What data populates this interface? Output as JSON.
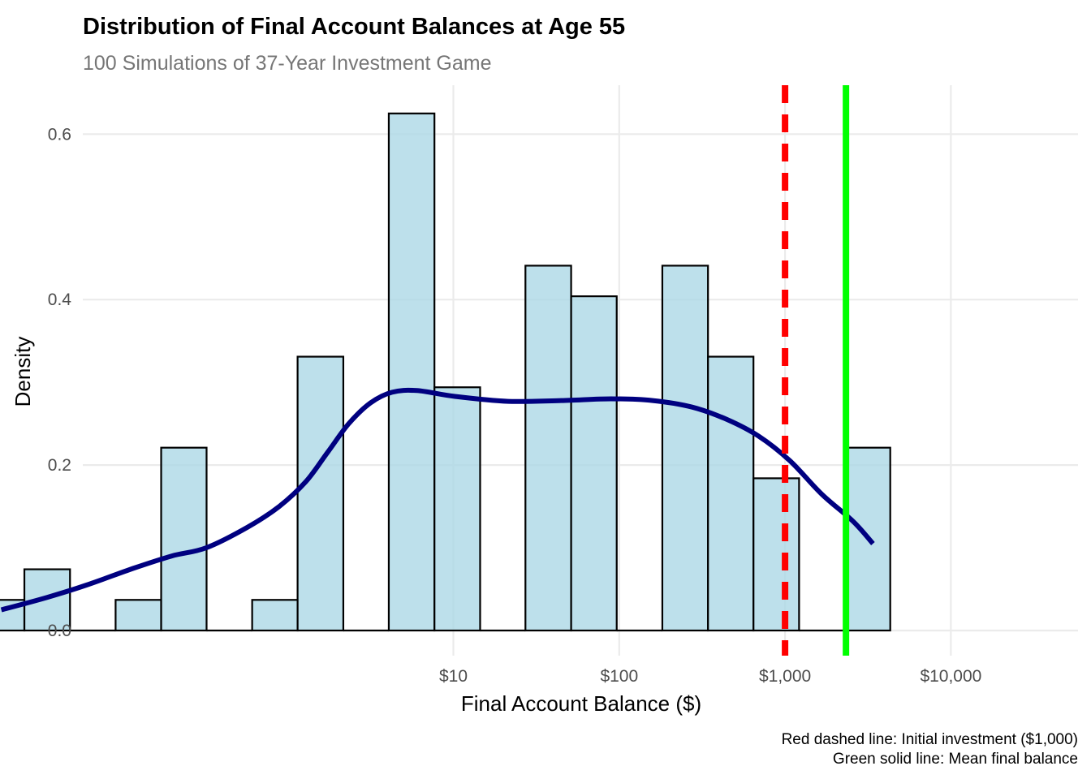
{
  "chart_data": {
    "type": "bar",
    "title": "Distribution of Final Account Balances at Age 55",
    "subtitle": "100 Simulations of 37-Year Investment Game",
    "xlabel": "Final Account Balance ($)",
    "ylabel": "Density",
    "x_scale": "log10",
    "x_tick_labels": [
      {
        "value": 10,
        "label": "$10"
      },
      {
        "value": 100,
        "label": "$100"
      },
      {
        "value": 1000,
        "label": "$1,000"
      },
      {
        "value": 10000,
        "label": "$10,000"
      }
    ],
    "y_tick_labels": [
      {
        "value": 0.0,
        "label": "0.0"
      },
      {
        "value": 0.2,
        "label": "0.2"
      },
      {
        "value": 0.4,
        "label": "0.4"
      },
      {
        "value": 0.6,
        "label": "0.6"
      }
    ],
    "ylim": [
      0,
      0.65
    ],
    "xlim_log10": [
      -2.03,
      4.05
    ],
    "grid": true,
    "histogram": {
      "bar_fill": "#add8e6",
      "bar_stroke": "#000000",
      "bins": [
        {
          "x_min": 0.0138,
          "x_max": 0.0259,
          "density": 0.037
        },
        {
          "x_min": 0.0259,
          "x_max": 0.0488,
          "density": 0.074
        },
        {
          "x_min": 0.0488,
          "x_max": 0.0919,
          "density": 0.0
        },
        {
          "x_min": 0.0919,
          "x_max": 0.173,
          "density": 0.037
        },
        {
          "x_min": 0.173,
          "x_max": 0.325,
          "density": 0.221
        },
        {
          "x_min": 0.325,
          "x_max": 0.612,
          "density": 0.0
        },
        {
          "x_min": 0.612,
          "x_max": 1.15,
          "density": 0.037
        },
        {
          "x_min": 1.15,
          "x_max": 2.17,
          "density": 0.331
        },
        {
          "x_min": 2.17,
          "x_max": 4.08,
          "density": 0.0
        },
        {
          "x_min": 4.08,
          "x_max": 7.69,
          "density": 0.625
        },
        {
          "x_min": 7.69,
          "x_max": 14.5,
          "density": 0.294
        },
        {
          "x_min": 14.5,
          "x_max": 27.2,
          "density": 0.0
        },
        {
          "x_min": 27.2,
          "x_max": 51.3,
          "density": 0.441
        },
        {
          "x_min": 51.3,
          "x_max": 96.6,
          "density": 0.404
        },
        {
          "x_min": 96.6,
          "x_max": 182,
          "density": 0.0
        },
        {
          "x_min": 182,
          "x_max": 343,
          "density": 0.441
        },
        {
          "x_min": 343,
          "x_max": 645,
          "density": 0.331
        },
        {
          "x_min": 645,
          "x_max": 1215,
          "density": 0.184
        },
        {
          "x_min": 1215,
          "x_max": 2288,
          "density": 0.0
        },
        {
          "x_min": 2288,
          "x_max": 4309,
          "density": 0.221
        }
      ]
    },
    "density_curve": {
      "color": "#000080",
      "points": [
        {
          "x": 0.0188,
          "y": 0.025
        },
        {
          "x": 0.0355,
          "y": 0.04
        },
        {
          "x": 0.0616,
          "y": 0.055
        },
        {
          "x": 0.117,
          "y": 0.075
        },
        {
          "x": 0.2,
          "y": 0.09
        },
        {
          "x": 0.324,
          "y": 0.1
        },
        {
          "x": 0.575,
          "y": 0.125
        },
        {
          "x": 0.891,
          "y": 0.15
        },
        {
          "x": 1.29,
          "y": 0.18
        },
        {
          "x": 1.74,
          "y": 0.215
        },
        {
          "x": 2.34,
          "y": 0.25
        },
        {
          "x": 3.16,
          "y": 0.275
        },
        {
          "x": 4.27,
          "y": 0.288
        },
        {
          "x": 6.03,
          "y": 0.29
        },
        {
          "x": 10.2,
          "y": 0.283
        },
        {
          "x": 21.4,
          "y": 0.277
        },
        {
          "x": 44.7,
          "y": 0.278
        },
        {
          "x": 89.1,
          "y": 0.28
        },
        {
          "x": 159,
          "y": 0.278
        },
        {
          "x": 275,
          "y": 0.27
        },
        {
          "x": 447,
          "y": 0.255
        },
        {
          "x": 692,
          "y": 0.235
        },
        {
          "x": 1072,
          "y": 0.205
        },
        {
          "x": 1660,
          "y": 0.165
        },
        {
          "x": 2570,
          "y": 0.132
        },
        {
          "x": 3388,
          "y": 0.105
        }
      ]
    },
    "reference_lines": [
      {
        "name": "initial-investment",
        "value": 1000,
        "color": "#ff0000",
        "style": "dashed"
      },
      {
        "name": "mean-final-balance",
        "value": 2330,
        "color": "#00ff00",
        "style": "solid"
      }
    ],
    "caption": [
      "Red dashed line: Initial investment ($1,000)",
      "Green solid line: Mean final balance"
    ]
  }
}
